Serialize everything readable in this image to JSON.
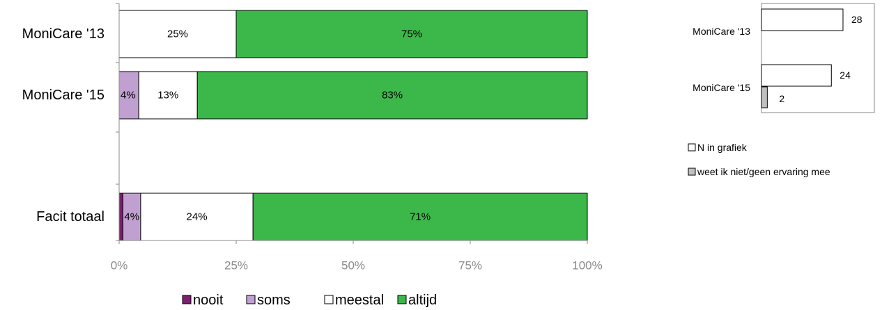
{
  "chart_data": [
    {
      "type": "bar",
      "orientation": "horizontal",
      "stacked": true,
      "percent": true,
      "categories": [
        "MoniCare '13",
        "MoniCare '15",
        "",
        "Facit totaal"
      ],
      "series": [
        {
          "name": "nooit",
          "color": "#7b1f6e",
          "values": [
            0,
            0,
            null,
            0.8
          ]
        },
        {
          "name": "soms",
          "color": "#c0a0d0",
          "values": [
            0,
            4.2,
            null,
            3.8
          ]
        },
        {
          "name": "meestal",
          "color": "#ffffff",
          "values": [
            25,
            12.5,
            null,
            24
          ]
        },
        {
          "name": "altijd",
          "color": "#3cb84a",
          "values": [
            75,
            83.3,
            null,
            71.4
          ]
        }
      ],
      "data_labels": [
        [
          "",
          "",
          "25%",
          "75%"
        ],
        [
          "",
          "4%",
          "13%",
          "83%"
        ],
        [
          "",
          "",
          "",
          ""
        ],
        [
          "",
          "4%",
          "24%",
          "71%"
        ]
      ],
      "x_ticks": [
        "0%",
        "25%",
        "50%",
        "75%",
        "100%"
      ],
      "xlim": [
        0,
        100
      ],
      "legend": [
        "nooit",
        "soms",
        "meestal",
        "altijd"
      ],
      "legend_position": "bottom"
    },
    {
      "type": "bar",
      "orientation": "horizontal",
      "categories": [
        "MoniCare '13",
        "MoniCare '15"
      ],
      "series": [
        {
          "name": "N in grafiek",
          "color": "#ffffff",
          "values": [
            28,
            24
          ]
        },
        {
          "name": "weet ik niet/geen ervaring mee",
          "color": "#c0c0c0",
          "values": [
            0,
            2
          ]
        }
      ],
      "xlim": [
        0,
        32
      ],
      "legend": [
        "N in grafiek",
        "weet ik niet/geen ervaring mee"
      ],
      "legend_position": "right"
    }
  ]
}
